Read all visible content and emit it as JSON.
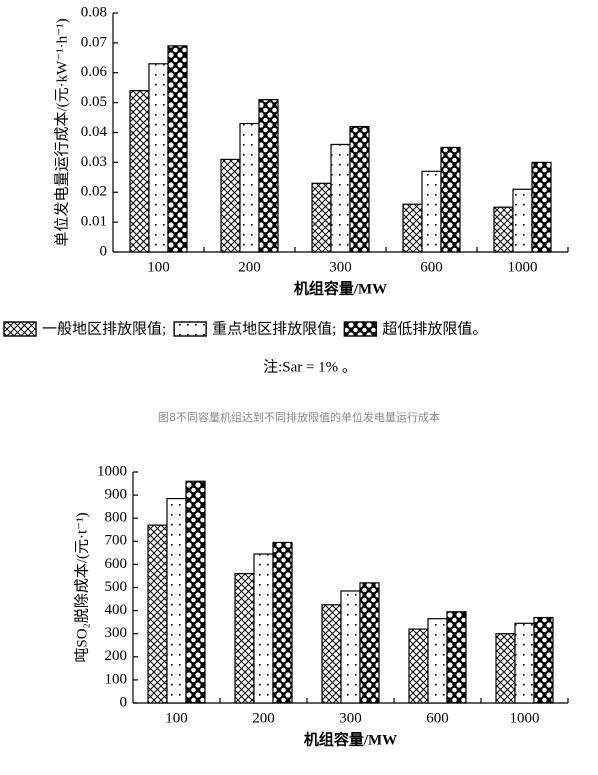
{
  "chart_data": [
    {
      "type": "bar",
      "ylabel": "单位发电量运行成本/(元·kW⁻¹·h⁻¹)",
      "xlabel": "机组容量/MW",
      "categories": [
        "100",
        "200",
        "300",
        "600",
        "1000"
      ],
      "series": [
        {
          "name": "一般地区排放限值;",
          "color": "#000000",
          "pattern": "crosshatch",
          "values": [
            0.054,
            0.031,
            0.023,
            0.016,
            0.015
          ]
        },
        {
          "name": "重点地区排放限值;",
          "color": "#000000",
          "pattern": "dots",
          "values": [
            0.063,
            0.043,
            0.036,
            0.027,
            0.021
          ]
        },
        {
          "name": "超低排放限值。",
          "color": "#000000",
          "pattern": "diamonds",
          "values": [
            0.069,
            0.051,
            0.042,
            0.035,
            0.03
          ]
        }
      ],
      "ylim": [
        0,
        0.08
      ],
      "yticks": [
        0,
        0.01,
        0.02,
        0.03,
        0.04,
        0.05,
        0.06,
        0.07,
        0.08
      ],
      "grid": false,
      "note": "注:Sar = 1% 。",
      "caption": "图8不同容量机组达到不同排放限值的单位发电量运行成本"
    },
    {
      "type": "bar",
      "ylabel": "吨SO₂脱除成本/(元·t⁻¹)",
      "xlabel": "机组容量/MW",
      "categories": [
        "100",
        "200",
        "300",
        "600",
        "1000"
      ],
      "series": [
        {
          "color": "#000000",
          "pattern": "crosshatch",
          "values": [
            770,
            560,
            425,
            320,
            300
          ]
        },
        {
          "color": "#000000",
          "pattern": "dots",
          "values": [
            885,
            645,
            485,
            365,
            345
          ]
        },
        {
          "color": "#000000",
          "pattern": "diamonds",
          "values": [
            960,
            695,
            520,
            395,
            370
          ]
        }
      ],
      "ylim": [
        0,
        1000
      ],
      "yticks": [
        0,
        100,
        200,
        300,
        400,
        500,
        600,
        700,
        800,
        900,
        1000
      ],
      "grid": false
    }
  ]
}
